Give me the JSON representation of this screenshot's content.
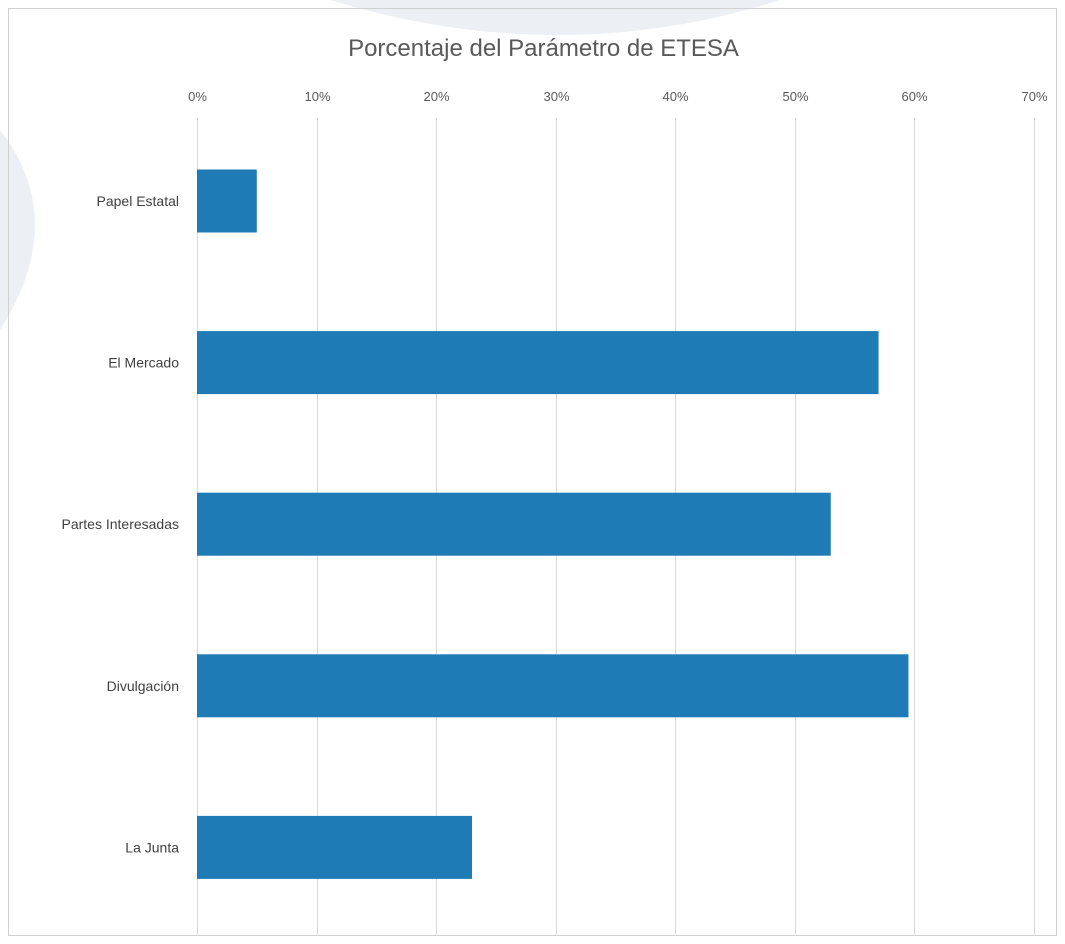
{
  "chart_data": {
    "type": "bar",
    "orientation": "horizontal",
    "title": "Porcentaje del Parámetro de ETESA",
    "xlabel": "",
    "ylabel": "",
    "categories": [
      "Papel Estatal",
      "El Mercado",
      "Partes Interesadas",
      "Divulgación",
      "La Junta"
    ],
    "values": [
      5,
      57,
      53,
      59.5,
      23
    ],
    "value_unit": "%",
    "xlim": [
      0,
      70
    ],
    "ticks": [
      "0%",
      "10%",
      "20%",
      "30%",
      "40%",
      "50%",
      "60%",
      "70%"
    ],
    "tick_values": [
      0,
      10,
      20,
      30,
      40,
      50,
      60,
      70
    ],
    "axis_position": "top",
    "grid": true,
    "legend": "none",
    "colors": {
      "bar": "#1f7bb6",
      "grid": "#d9d9d9",
      "text": "#595959",
      "frame": "#d0d0d0",
      "background": "#ffffff",
      "watermark": "#eceff3"
    }
  }
}
